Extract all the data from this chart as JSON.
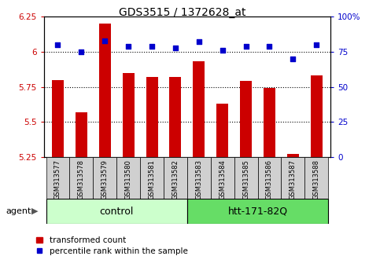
{
  "title": "GDS3515 / 1372628_at",
  "samples": [
    "GSM313577",
    "GSM313578",
    "GSM313579",
    "GSM313580",
    "GSM313581",
    "GSM313582",
    "GSM313583",
    "GSM313584",
    "GSM313585",
    "GSM313586",
    "GSM313587",
    "GSM313588"
  ],
  "bar_values": [
    5.8,
    5.57,
    6.2,
    5.85,
    5.82,
    5.82,
    5.93,
    5.63,
    5.79,
    5.74,
    5.27,
    5.83
  ],
  "dot_values": [
    80,
    75,
    83,
    79,
    79,
    78,
    82,
    76,
    79,
    79,
    70,
    80
  ],
  "bar_color": "#cc0000",
  "dot_color": "#0000cc",
  "ymin": 5.25,
  "ymax": 6.25,
  "rmin": 0,
  "rmax": 100,
  "yticks_left": [
    5.25,
    5.5,
    5.75,
    6.0,
    6.25
  ],
  "ytick_labels_left": [
    "5.25",
    "5.5",
    "5.75",
    "6",
    "6.25"
  ],
  "yticks_right": [
    0,
    25,
    50,
    75,
    100
  ],
  "ytick_labels_right": [
    "0",
    "25",
    "50",
    "75",
    "100%"
  ],
  "hlines": [
    6.0,
    5.75,
    5.5
  ],
  "group1_label": "control",
  "group2_label": "htt-171-82Q",
  "agent_label": "agent",
  "legend_bar_label": "transformed count",
  "legend_dot_label": "percentile rank within the sample",
  "group1_color": "#ccffcc",
  "group2_color": "#66dd66",
  "sample_bg_color": "#d0d0d0",
  "bar_width": 0.5,
  "figsize": [
    4.83,
    3.54
  ],
  "dpi": 100
}
